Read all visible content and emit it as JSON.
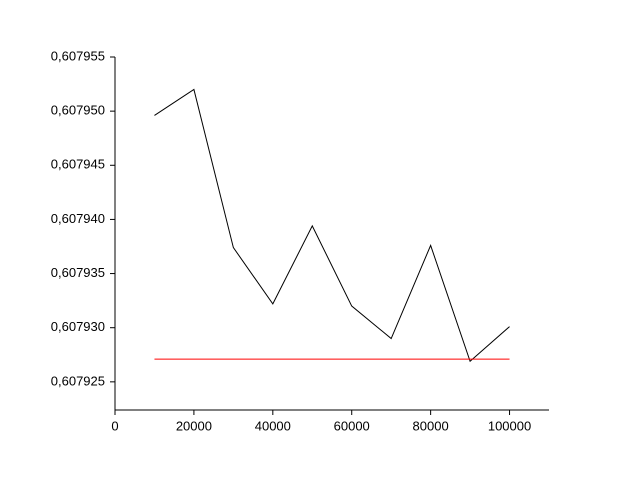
{
  "chart_data": {
    "type": "line",
    "series": [
      {
        "color": "#000000",
        "x": [
          10000,
          20000,
          30000,
          40000,
          50000,
          60000,
          70000,
          80000,
          90000,
          100000
        ],
        "values": [
          0.6079496,
          0.607952,
          0.6079374,
          0.6079322,
          0.6079394,
          0.607932,
          0.607929,
          0.6079376,
          0.6079269,
          0.6079301
        ]
      },
      {
        "color": "#ff0000",
        "x": [
          10000,
          100000
        ],
        "values": [
          0.6079271,
          0.6079271
        ]
      }
    ],
    "xlim": [
      0,
      110000
    ],
    "xticks": [
      0,
      20000,
      40000,
      60000,
      80000,
      100000
    ],
    "ylim": [
      0.6079224,
      0.607955
    ],
    "yticks": [
      {
        "value": 0.607925,
        "label": "0,607925"
      },
      {
        "value": 0.60793,
        "label": "0,607930"
      },
      {
        "value": 0.607935,
        "label": "0,607935"
      },
      {
        "value": 0.60794,
        "label": "0,607940"
      },
      {
        "value": 0.607945,
        "label": "0,607945"
      },
      {
        "value": 0.60795,
        "label": "0,607950"
      },
      {
        "value": 0.607955,
        "label": "0,607955"
      }
    ],
    "grid": false
  }
}
